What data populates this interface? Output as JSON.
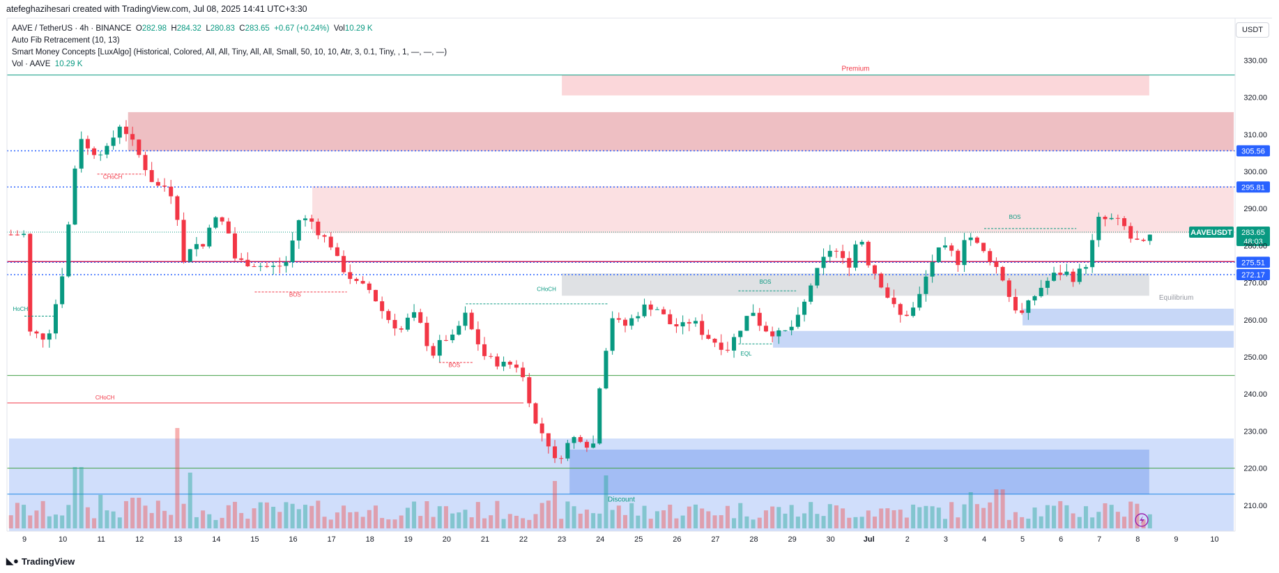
{
  "header": {
    "text": "atefeghazihesari created with TradingView.com, Jul 08, 2025 14:41 UTC+3:30"
  },
  "legend": {
    "symbol": "AAVE / TetherUS · 4h · BINANCE",
    "o_label": "O",
    "o": "282.98",
    "h_label": "H",
    "h": "284.32",
    "l_label": "L",
    "l": "280.83",
    "c_label": "C",
    "c": "283.65",
    "change": "+0.67 (+0.24%)",
    "vol_label": "Vol",
    "vol": "10.29 K",
    "ind1": "Auto Fib Retracement (10, 13)",
    "ind2": "Smart Money Concepts [LuxAlgo] (Historical, Colored, All, All, Tiny, All, All, Small, 50, 10, 10, Atr, 3, 0.1, Tiny, , 1, —, —, —)",
    "ind3_name": "Vol · AAVE",
    "ind3_val": "10.29 K"
  },
  "unit": "USDT",
  "footer": {
    "logo": "TradingView"
  },
  "colors": {
    "up": "#089981",
    "down": "#f23645",
    "blue": "#2962ff"
  },
  "chart_data": {
    "type": "candlestick",
    "symbol": "AAVEUSDT",
    "timeframe": "4h",
    "ylim": [
      202,
      335
    ],
    "y_ticks": [
      210,
      220,
      230,
      240,
      250,
      260,
      270,
      280,
      290,
      300,
      310,
      320,
      330
    ],
    "x_ticks": [
      {
        "label": "9",
        "day": 0
      },
      {
        "label": "10",
        "day": 1
      },
      {
        "label": "11",
        "day": 2
      },
      {
        "label": "12",
        "day": 3
      },
      {
        "label": "13",
        "day": 4
      },
      {
        "label": "14",
        "day": 5
      },
      {
        "label": "15",
        "day": 6
      },
      {
        "label": "16",
        "day": 7
      },
      {
        "label": "17",
        "day": 8
      },
      {
        "label": "18",
        "day": 9
      },
      {
        "label": "19",
        "day": 10
      },
      {
        "label": "20",
        "day": 11
      },
      {
        "label": "21",
        "day": 12
      },
      {
        "label": "22",
        "day": 13
      },
      {
        "label": "23",
        "day": 14
      },
      {
        "label": "24",
        "day": 15
      },
      {
        "label": "25",
        "day": 16
      },
      {
        "label": "26",
        "day": 17
      },
      {
        "label": "27",
        "day": 18
      },
      {
        "label": "28",
        "day": 19
      },
      {
        "label": "29",
        "day": 20
      },
      {
        "label": "30",
        "day": 21
      },
      {
        "label": "Jul",
        "day": 22
      },
      {
        "label": "2",
        "day": 23
      },
      {
        "label": "3",
        "day": 24
      },
      {
        "label": "4",
        "day": 25
      },
      {
        "label": "5",
        "day": 26
      },
      {
        "label": "6",
        "day": 27
      },
      {
        "label": "7",
        "day": 28
      },
      {
        "label": "8",
        "day": 29
      },
      {
        "label": "9",
        "day": 30
      },
      {
        "label": "10",
        "day": 31
      }
    ],
    "day_keypoints": [
      [
        0,
        257
      ],
      [
        0.6,
        255
      ],
      [
        0.9,
        268
      ],
      [
        1.05,
        276
      ],
      [
        1.3,
        300
      ],
      [
        1.45,
        310
      ],
      [
        1.7,
        305
      ],
      [
        2.2,
        306
      ],
      [
        2.45,
        313
      ],
      [
        2.7,
        310
      ],
      [
        3.1,
        302
      ],
      [
        3.4,
        296
      ],
      [
        3.7,
        296
      ],
      [
        3.95,
        292
      ],
      [
        4.1,
        274
      ],
      [
        4.4,
        282
      ],
      [
        4.6,
        278
      ],
      [
        4.85,
        287
      ],
      [
        5.1,
        287
      ],
      [
        5.3,
        284
      ],
      [
        5.5,
        276
      ],
      [
        6.0,
        275
      ],
      [
        6.4,
        274
      ],
      [
        6.8,
        275
      ],
      [
        7.15,
        287
      ],
      [
        7.45,
        287
      ],
      [
        7.7,
        283
      ],
      [
        7.95,
        281
      ],
      [
        8.2,
        275
      ],
      [
        8.6,
        270
      ],
      [
        9.0,
        268
      ],
      [
        9.4,
        261
      ],
      [
        9.8,
        257
      ],
      [
        10.1,
        262
      ],
      [
        10.35,
        258
      ],
      [
        10.6,
        250
      ],
      [
        10.9,
        255
      ],
      [
        11.2,
        255
      ],
      [
        11.45,
        262
      ],
      [
        11.7,
        256
      ],
      [
        12.0,
        250
      ],
      [
        12.4,
        248
      ],
      [
        12.8,
        248
      ],
      [
        13.05,
        243
      ],
      [
        13.3,
        232
      ],
      [
        13.6,
        228
      ],
      [
        13.85,
        221
      ],
      [
        14.1,
        226
      ],
      [
        14.4,
        229
      ],
      [
        14.8,
        225
      ],
      [
        15.0,
        244
      ],
      [
        15.3,
        261
      ],
      [
        15.6,
        258
      ],
      [
        15.9,
        261
      ],
      [
        16.2,
        264
      ],
      [
        16.5,
        263
      ],
      [
        16.8,
        259
      ],
      [
        17.1,
        258
      ],
      [
        17.4,
        260
      ],
      [
        17.7,
        256
      ],
      [
        18.0,
        254
      ],
      [
        18.3,
        252
      ],
      [
        18.6,
        257
      ],
      [
        18.95,
        263
      ],
      [
        19.2,
        258
      ],
      [
        19.6,
        256
      ],
      [
        19.9,
        257
      ],
      [
        20.2,
        261
      ],
      [
        20.5,
        270
      ],
      [
        20.8,
        276
      ],
      [
        21.05,
        280
      ],
      [
        21.3,
        276
      ],
      [
        21.5,
        275
      ],
      [
        21.75,
        284
      ],
      [
        21.95,
        276
      ],
      [
        22.2,
        272
      ],
      [
        22.5,
        266
      ],
      [
        22.8,
        261
      ],
      [
        23.1,
        262
      ],
      [
        23.3,
        266
      ],
      [
        23.6,
        275
      ],
      [
        23.85,
        279
      ],
      [
        24.1,
        279
      ],
      [
        24.3,
        275
      ],
      [
        24.5,
        283
      ],
      [
        24.7,
        282
      ],
      [
        24.9,
        279
      ],
      [
        25.2,
        276
      ],
      [
        25.45,
        272
      ],
      [
        25.7,
        265
      ],
      [
        25.95,
        261
      ],
      [
        26.2,
        265
      ],
      [
        26.5,
        269
      ],
      [
        26.8,
        272
      ],
      [
        27.1,
        273
      ],
      [
        27.35,
        271
      ],
      [
        27.55,
        274
      ],
      [
        27.75,
        276
      ],
      [
        27.9,
        287
      ],
      [
        28.1,
        287
      ],
      [
        28.35,
        287
      ],
      [
        28.6,
        286
      ],
      [
        28.8,
        282
      ],
      [
        29.0,
        281
      ],
      [
        29.2,
        280
      ],
      [
        29.35,
        283
      ]
    ],
    "volume_peaks": [
      [
        1.4,
        22
      ],
      [
        2.0,
        12
      ],
      [
        2.9,
        11
      ],
      [
        4.0,
        36
      ],
      [
        4.3,
        20
      ],
      [
        13.8,
        17
      ],
      [
        15.2,
        19
      ],
      [
        24.6,
        13
      ],
      [
        25.4,
        14
      ],
      [
        28.1,
        9
      ]
    ],
    "price_lines": [
      {
        "value": 305.56,
        "label": "305.56",
        "color": "#2962ff",
        "style": "dotted"
      },
      {
        "value": 295.81,
        "label": "295.81",
        "color": "#2962ff",
        "style": "dotted"
      },
      {
        "value": 275.51,
        "label": "275.51",
        "color": "#2962ff",
        "style": "dotted"
      },
      {
        "value": 272.17,
        "label": "272.17",
        "color": "#2962ff",
        "style": "dotted"
      },
      {
        "value": 275.7,
        "label": "",
        "color": "#c2185b",
        "style": "solid"
      }
    ],
    "last_price": {
      "symbol": "AAVEUSDT",
      "value": 283.65,
      "label": "283.65",
      "countdown": "48:03"
    },
    "zones": [
      {
        "label": "Premium",
        "y": [
          320.5,
          326
        ],
        "x": [
          14.0,
          29.3
        ],
        "color": "#f7b6bb",
        "alpha": 0.55
      },
      {
        "label": "",
        "y": [
          305.5,
          316
        ],
        "x": [
          2.7,
          31.5
        ],
        "color": "#e08a92",
        "alpha": 0.55
      },
      {
        "label": "",
        "y": [
          283.4,
          296
        ],
        "x": [
          7.5,
          31.5
        ],
        "color": "#f7c2c6",
        "alpha": 0.5
      },
      {
        "label": "Equilibrium",
        "y": [
          266.5,
          272.5
        ],
        "x": [
          14.0,
          29.3
        ],
        "color": "#b9bdc4",
        "alpha": 0.45
      },
      {
        "label": "",
        "y": [
          258.5,
          263
        ],
        "x": [
          26.0,
          31.5
        ],
        "color": "#8fb0f0",
        "alpha": 0.5
      },
      {
        "label": "",
        "y": [
          252.5,
          257
        ],
        "x": [
          19.5,
          31.5
        ],
        "color": "#8fb0f0",
        "alpha": 0.5
      },
      {
        "label": "Discount",
        "y": [
          203,
          228
        ],
        "x": [
          -0.4,
          31.5
        ],
        "color": "#aac3f7",
        "alpha": 0.55
      },
      {
        "label": "",
        "y": [
          213,
          225
        ],
        "x": [
          14.2,
          29.3
        ],
        "color": "#6d95ec",
        "alpha": 0.45
      }
    ],
    "structure_labels": [
      {
        "text": "CHoCH",
        "day": 2.3,
        "price": 298,
        "color": "#f23645"
      },
      {
        "text": "BOS",
        "day": 7.05,
        "price": 266.3,
        "color": "#f23645"
      },
      {
        "text": "BOS",
        "day": 11.2,
        "price": 247.3,
        "color": "#f23645"
      },
      {
        "text": "CHoCH",
        "day": 13.6,
        "price": 267.8,
        "color": "#089981"
      },
      {
        "text": "BOS",
        "day": 19.3,
        "price": 269.7,
        "color": "#089981"
      },
      {
        "text": "EQL",
        "day": 18.8,
        "price": 250.4,
        "color": "#089981"
      },
      {
        "text": "BOS",
        "day": 25.8,
        "price": 287.2,
        "color": "#089981"
      },
      {
        "text": "HoCH",
        "day": -0.3,
        "price": 262.4,
        "color": "#089981"
      },
      {
        "text": "CHoCH",
        "day": 2.1,
        "price": 238.5,
        "color": "#f23645"
      }
    ]
  }
}
